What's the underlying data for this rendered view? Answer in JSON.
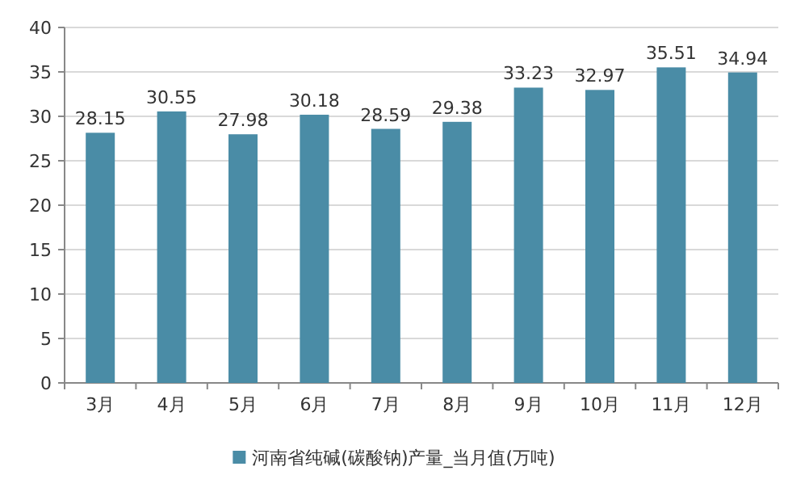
{
  "chart_data": {
    "type": "bar",
    "categories": [
      "3月",
      "4月",
      "5月",
      "6月",
      "7月",
      "8月",
      "9月",
      "10月",
      "11月",
      "12月"
    ],
    "series": [
      {
        "name": "河南省纯碱(碳酸钠)产量_当月值(万吨)",
        "color": "#4a8ca6",
        "values": [
          28.15,
          30.55,
          27.98,
          30.18,
          28.59,
          29.38,
          33.23,
          32.97,
          35.51,
          34.94
        ]
      }
    ],
    "ylim": [
      0,
      40
    ],
    "yticks": [
      0,
      5,
      10,
      15,
      20,
      25,
      30,
      35,
      40
    ],
    "grid": "y",
    "legend": "bottom",
    "data_labels": true
  }
}
